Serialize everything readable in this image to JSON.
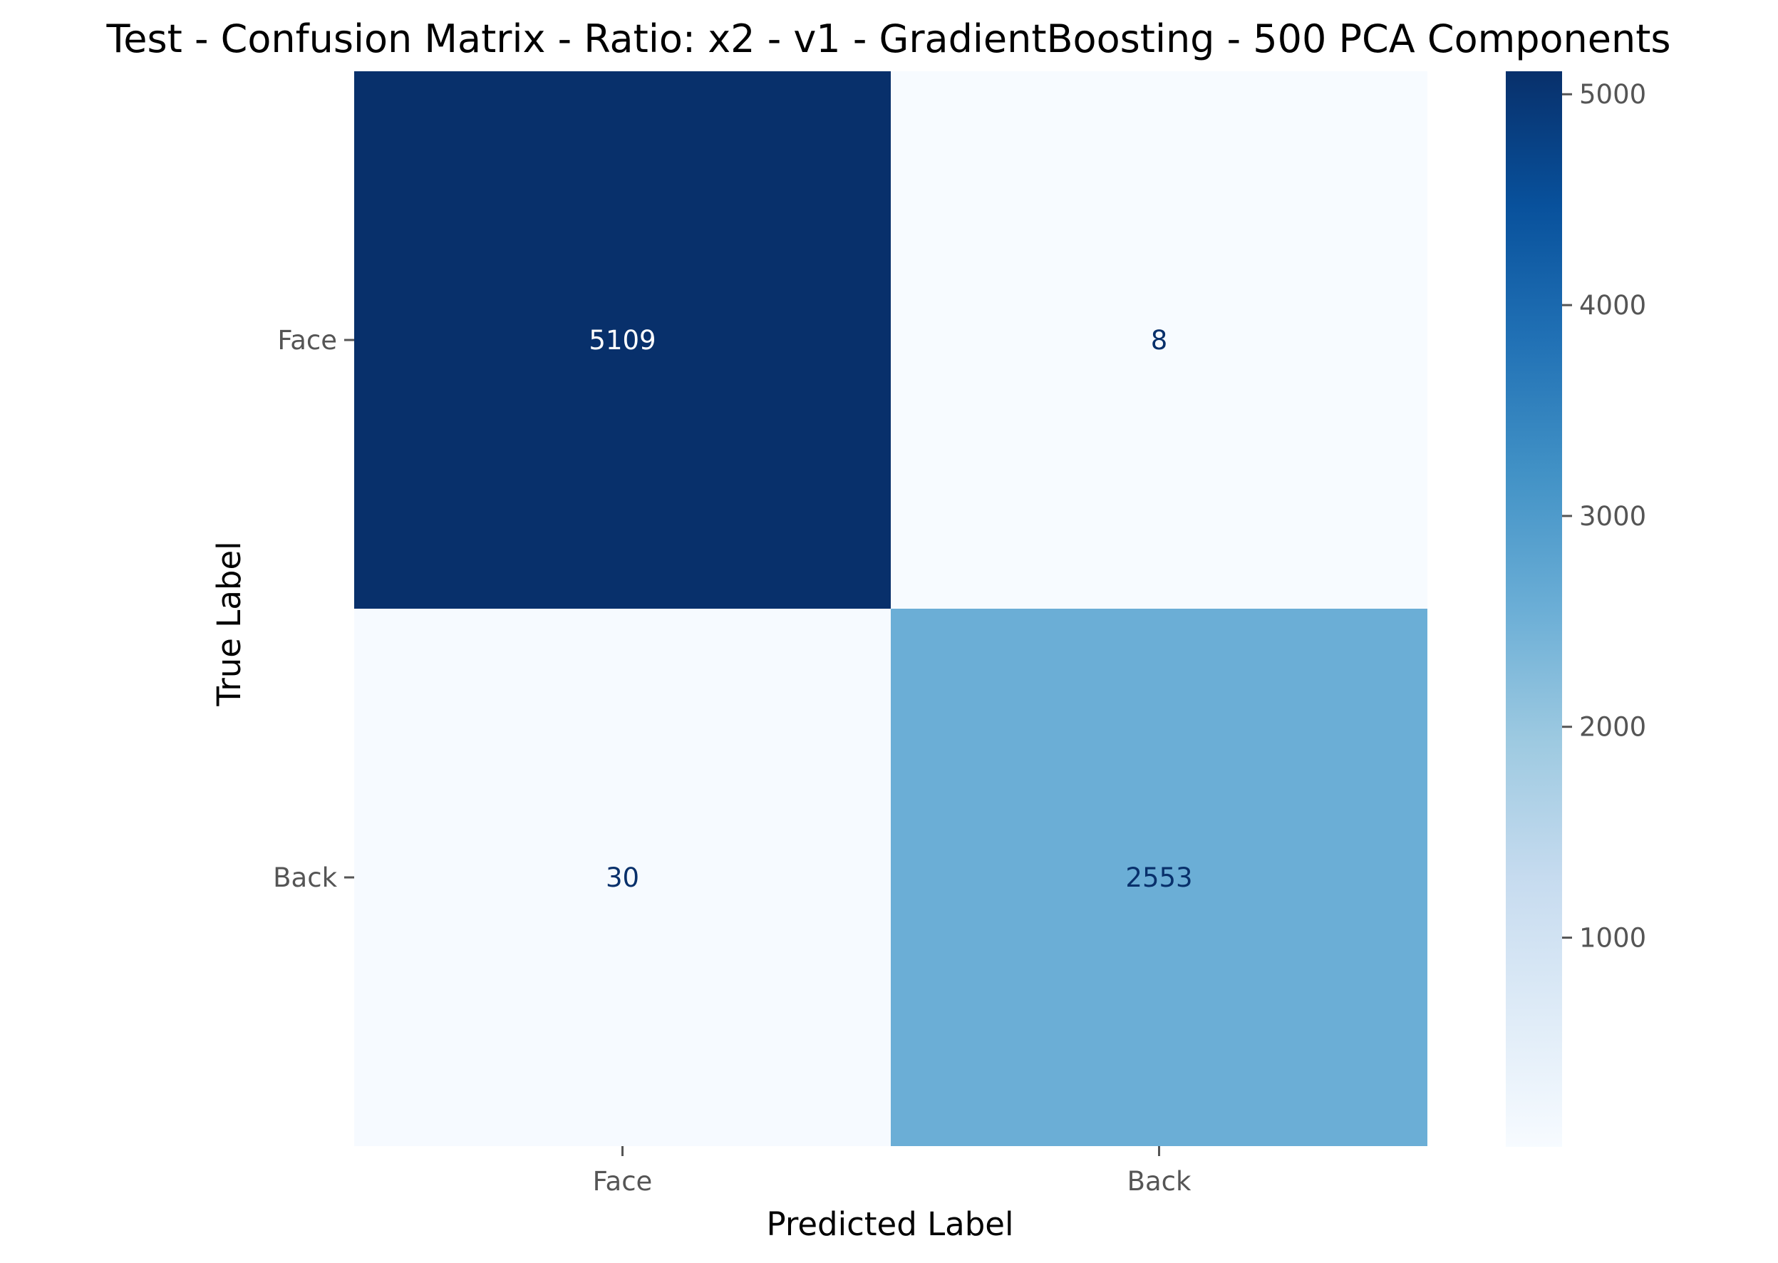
{
  "chart_data": {
    "type": "heatmap",
    "title": "Test - Confusion Matrix - Ratio: x2 - v1 - GradientBoosting - 500 PCA Components",
    "xlabel": "Predicted Label",
    "ylabel": "True Label",
    "x_categories": [
      "Face",
      "Back"
    ],
    "y_categories": [
      "Face",
      "Back"
    ],
    "matrix": [
      [
        5109,
        8
      ],
      [
        30,
        2553
      ]
    ],
    "colormap": "Blues",
    "colorbar": {
      "min": 8,
      "max": 5109,
      "ticks": [
        1000,
        2000,
        3000,
        4000,
        5000
      ],
      "tick_labels": [
        "1000",
        "2000",
        "3000",
        "4000",
        "5000"
      ]
    },
    "grid": false,
    "text_color_light": "#ffffff",
    "text_color_dark": "#08306b"
  }
}
